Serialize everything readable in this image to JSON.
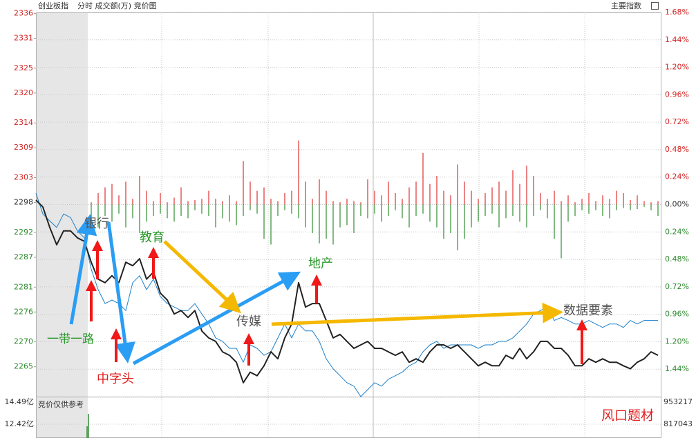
{
  "chart_data": {
    "type": "line",
    "title": "创业板指",
    "subtitle": "分时 成交额(万) 竞价图",
    "menu_label": "主要指数",
    "ylim": [
      2259,
      2336.2
    ],
    "yticks": [
      2336,
      2331,
      2325,
      2320,
      2314,
      2309,
      2303,
      2298,
      2292,
      2287,
      2281,
      2276,
      2270,
      2265
    ],
    "y2lim": [
      -1.68,
      1.68
    ],
    "y2ticks": [
      {
        "value": 1.68,
        "label": "1.68%"
      },
      {
        "value": 1.44,
        "label": "1.44%"
      },
      {
        "value": 1.2,
        "label": "1.20%"
      },
      {
        "value": 0.96,
        "label": "0.96%"
      },
      {
        "value": 0.72,
        "label": "0.72%"
      },
      {
        "value": 0.48,
        "label": "0.48%"
      },
      {
        "value": 0.24,
        "label": "0.24%"
      },
      {
        "value": 0,
        "label": "0.00%"
      },
      {
        "value": -0.24,
        "label": "0.24%"
      },
      {
        "value": -0.48,
        "label": "0.48%"
      },
      {
        "value": -0.72,
        "label": "0.72%"
      },
      {
        "value": -0.96,
        "label": "0.96%"
      },
      {
        "value": -1.2,
        "label": "1.20%"
      },
      {
        "value": -1.44,
        "label": "1.44%"
      }
    ],
    "grid": true,
    "series": [
      {
        "color": "#222222",
        "values": [
          2298.5,
          2297.1,
          2293.0,
          2289.5,
          2292.3,
          2292.3,
          2290.9,
          2290.2,
          2286.0,
          2282.6,
          2281.9,
          2283.3,
          2281.9,
          2286.0,
          2285.3,
          2286.7,
          2282.6,
          2284.0,
          2279.8,
          2278.4,
          2275.6,
          2276.3,
          2274.9,
          2276.3,
          2272.2,
          2270.8,
          2270.1,
          2268.0,
          2267.3,
          2265.9,
          2261.8,
          2263.9,
          2263.2,
          2265.2,
          2268.0,
          2266.6,
          2270.8,
          2273.6,
          2281.9,
          2277.0,
          2277.7,
          2277.7,
          2274.3,
          2270.8,
          2271.5,
          2270.1,
          2268.7,
          2269.4,
          2270.1,
          2268.7,
          2268.7,
          2268.0,
          2267.3,
          2268.0,
          2265.9,
          2266.6,
          2265.9,
          2268.0,
          2269.4,
          2269.4,
          2268.7,
          2269.4,
          2268.0,
          2266.6,
          2265.2,
          2265.9,
          2265.2,
          2265.2,
          2267.3,
          2266.6,
          2268.7,
          2266.6,
          2268.0,
          2270.1,
          2270.1,
          2268.7,
          2268.7,
          2267.3,
          2265.2,
          2265.2,
          2266.6,
          2265.9,
          2266.6,
          2265.9,
          2265.9,
          2265.2,
          2264.6,
          2265.9,
          2266.6,
          2268.0,
          2267.3
        ]
      },
      {
        "color": "#1a7fc9",
        "values": [
          2299.9,
          2295.7,
          2294.3,
          2293.0,
          2295.7,
          2295.0,
          2292.3,
          2290.9,
          2284.6,
          2280.5,
          2277.7,
          2278.4,
          2277.7,
          2276.3,
          2281.9,
          2283.3,
          2280.5,
          2282.6,
          2279.1,
          2277.7,
          2277.0,
          2276.3,
          2276.3,
          2277.7,
          2275.6,
          2273.6,
          2270.8,
          2270.1,
          2268.7,
          2268.7,
          2265.9,
          2269.4,
          2268.7,
          2267.3,
          2268.0,
          2270.8,
          2273.6,
          2270.8,
          2273.6,
          2272.2,
          2272.2,
          2270.1,
          2266.6,
          2264.6,
          2263.2,
          2261.8,
          2261.1,
          2259.0,
          2260.4,
          2261.8,
          2261.1,
          2262.5,
          2263.2,
          2263.9,
          2265.2,
          2265.9,
          2268.0,
          2269.4,
          2270.1,
          2268.7,
          2269.4,
          2269.4,
          2269.4,
          2269.4,
          2268.7,
          2269.4,
          2269.4,
          2270.1,
          2270.1,
          2270.8,
          2272.2,
          2273.6,
          2275.6,
          2276.3,
          2277.0,
          2274.3,
          2274.9,
          2274.3,
          2273.6,
          2273.6,
          2274.3,
          2273.6,
          2272.9,
          2273.6,
          2273.6,
          2272.9,
          2274.3,
          2273.6,
          2274.3,
          2274.3,
          2274.3
        ]
      }
    ],
    "bars": {
      "up_color": "#e03030",
      "down_color": "#2e8b2e",
      "up": [
        0,
        0,
        0,
        0,
        0,
        0,
        0,
        0,
        0.02,
        0.1,
        0.15,
        0.18,
        0.08,
        0.2,
        0.05,
        0.25,
        0.12,
        0.03,
        0.1,
        0.02,
        0.06,
        0.15,
        0.03,
        0.04,
        0.05,
        0.12,
        0.05,
        0.03,
        0.08,
        0.03,
        0.38,
        0.2,
        0.12,
        0.15,
        0.05,
        0.03,
        0.1,
        0.12,
        0.56,
        0.2,
        0.05,
        0.22,
        0.12,
        0.03,
        0.02,
        0.05,
        0.03,
        0.02,
        0.22,
        0.12,
        0.08,
        0.2,
        0.1,
        0.05,
        0.15,
        0.2,
        0.45,
        0.18,
        0.25,
        0.12,
        0.08,
        0.35,
        0.2,
        0.12,
        0.05,
        0.1,
        0.15,
        0.2,
        0.12,
        0.3,
        0.18,
        0.34,
        0.25,
        0.1,
        0.05,
        0.12,
        0.03,
        0.08,
        0.02,
        0.05,
        0.1,
        0.03,
        0.08,
        0.05,
        0.12,
        0.1,
        0.04,
        0.08,
        0.03,
        0.02,
        0.03
      ],
      "down": [
        0,
        0,
        0,
        0,
        0,
        0,
        0,
        0,
        -0.15,
        -0.2,
        -0.1,
        -0.15,
        -0.08,
        -0.2,
        -0.12,
        -0.25,
        -0.15,
        -0.1,
        -0.08,
        -0.12,
        -0.15,
        -0.1,
        -0.12,
        -0.05,
        -0.08,
        -0.1,
        -0.2,
        -0.12,
        -0.15,
        -0.18,
        -0.1,
        -0.05,
        -0.08,
        -0.3,
        -0.35,
        -0.1,
        -0.05,
        -0.08,
        -0.12,
        -0.2,
        -0.25,
        -0.34,
        -0.3,
        -0.35,
        -0.2,
        -0.18,
        -0.25,
        -0.1,
        -0.12,
        -0.08,
        -0.15,
        -0.1,
        -0.05,
        -0.12,
        -0.2,
        -0.1,
        -0.08,
        -0.15,
        -0.2,
        -0.3,
        -0.25,
        -0.4,
        -0.3,
        -0.2,
        -0.15,
        -0.1,
        -0.08,
        -0.2,
        -0.12,
        -0.1,
        -0.15,
        -0.2,
        -0.1,
        -0.05,
        -0.12,
        -0.3,
        -0.47,
        -0.15,
        -0.1,
        -0.05,
        -0.08,
        -0.05,
        -0.1,
        -0.12,
        -0.05,
        -0.03,
        -0.05,
        -0.04,
        -0.02,
        -0.05,
        -0.1
      ]
    },
    "annotations": [
      {
        "text": "银行",
        "color": "#555555"
      },
      {
        "text": "教育",
        "color": "#2a9a2a"
      },
      {
        "text": "地产",
        "color": "#2a9a2a"
      },
      {
        "text": "传媒",
        "color": "#555555"
      },
      {
        "text": "数据要素",
        "color": "#555555"
      },
      {
        "text": "一带一路",
        "color": "#2a9a2a"
      },
      {
        "text": "中字头",
        "color": "#e02020"
      },
      {
        "text": "风口题材",
        "color": "#e02020"
      }
    ],
    "volume_pane": {
      "label": "竞价仅供参考",
      "ylim": [
        747200,
        953217
      ],
      "yticks": [
        953217,
        817043
      ],
      "left_labels": [
        "14.49亿",
        "12.42亿"
      ],
      "color": "#2e8b2e",
      "values": [
        806560,
        869400
      ]
    }
  }
}
